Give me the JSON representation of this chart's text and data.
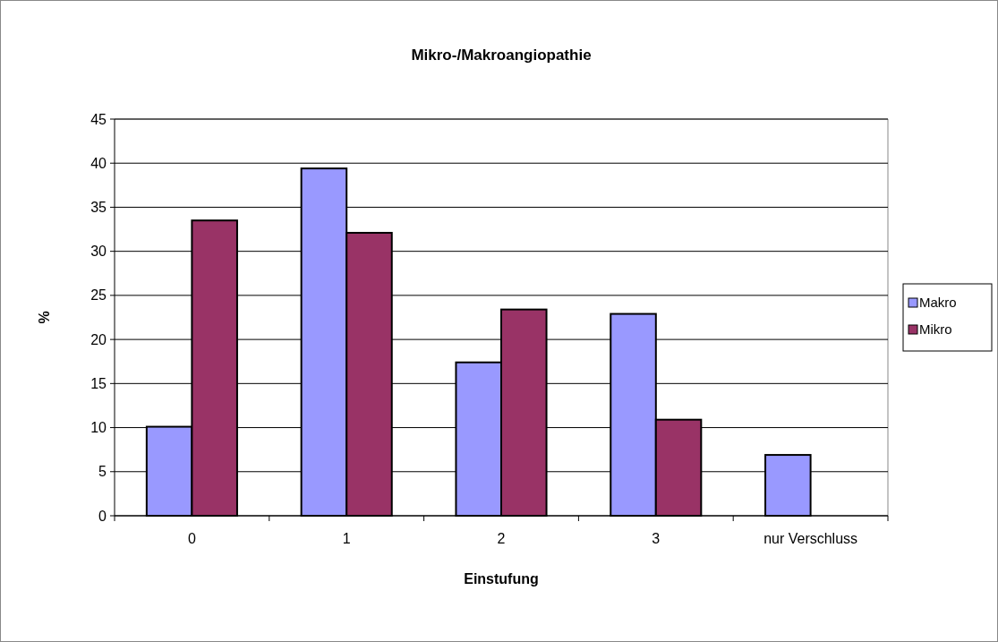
{
  "chart_data": {
    "type": "bar",
    "title": "Mikro-/Makroangiopathie",
    "xlabel": "Einstufung",
    "ylabel": "%",
    "categories": [
      "0",
      "1",
      "2",
      "3",
      "nur Verschluss"
    ],
    "series": [
      {
        "name": "Makro",
        "color": "#9999ff",
        "values": [
          10.1,
          39.4,
          17.4,
          22.9,
          6.9
        ]
      },
      {
        "name": "Mikro",
        "color": "#993366",
        "values": [
          33.5,
          32.1,
          23.4,
          10.9,
          null
        ]
      }
    ],
    "ylim": [
      0,
      45
    ],
    "yticks": [
      0,
      5,
      10,
      15,
      20,
      25,
      30,
      35,
      40,
      45
    ],
    "grid": "y",
    "legend": "right"
  }
}
